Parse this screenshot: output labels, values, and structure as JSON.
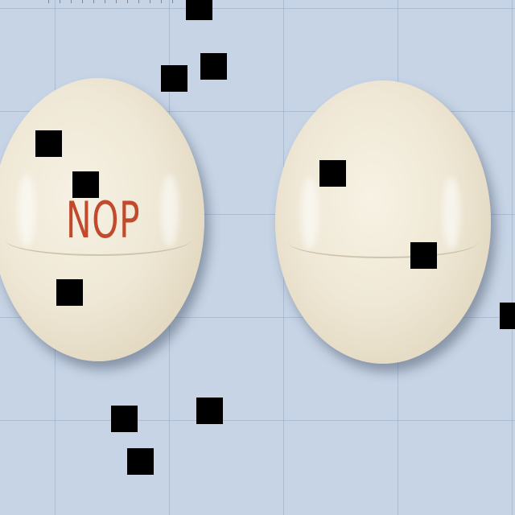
{
  "scene": {
    "description_tag": "two-pills-on-grid",
    "background_color": "#c6d4e6",
    "grid_color": "#96aac3"
  },
  "pills": [
    {
      "name": "pill-left",
      "color": "#efe8d6",
      "imprint": "NOP",
      "imprint_color": "#c24a2c"
    },
    {
      "name": "pill-right",
      "color": "#efe8d6",
      "imprint": ""
    }
  ],
  "occluders": {
    "color": "#000000",
    "count": 13
  }
}
